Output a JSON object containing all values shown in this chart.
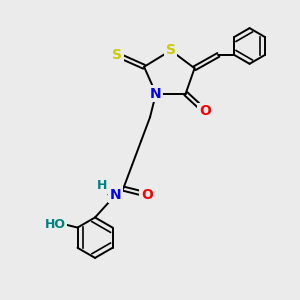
{
  "bg_color": "#ebebeb",
  "bond_color": "#000000",
  "bond_width": 1.4,
  "atom_colors": {
    "S": "#cccc00",
    "N": "#0000ff",
    "O": "#ff0000",
    "H": "#008080",
    "C": "#000000"
  },
  "font_size_atoms": 10,
  "font_size_small": 9
}
